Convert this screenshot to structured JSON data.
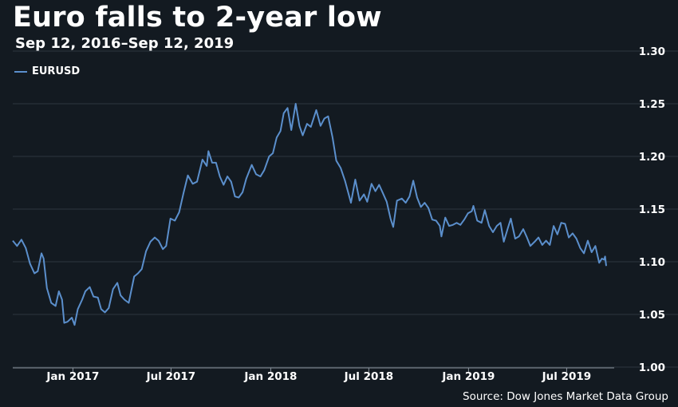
{
  "title": "Euro falls to 2-year low",
  "subtitle": "Sep 12, 2016–Sep 12, 2019",
  "source": "Source: Dow Jones Market Data Group",
  "colors": {
    "background": "#131a21",
    "line": "#5b8fcc",
    "grid": "#2c3540",
    "text": "#ffffff"
  },
  "chart_data": {
    "type": "line",
    "title": "Euro falls to 2-year low",
    "subtitle": "Sep 12, 2016–Sep 12, 2019",
    "xlabel": "",
    "ylabel": "",
    "ylim": [
      1.0,
      1.3
    ],
    "y_ticks": [
      "1.30",
      "1.25",
      "1.20",
      "1.15",
      "1.10",
      "1.05",
      "1.00"
    ],
    "x_ticks": [
      {
        "label": "Jan 2017",
        "date": "2017-01-01"
      },
      {
        "label": "Jul 2017",
        "date": "2017-07-01"
      },
      {
        "label": "Jan 2018",
        "date": "2018-01-01"
      },
      {
        "label": "Jul 2018",
        "date": "2018-07-01"
      },
      {
        "label": "Jan 2019",
        "date": "2019-01-01"
      },
      {
        "label": "Jul 2019",
        "date": "2019-07-01"
      }
    ],
    "x_range": [
      "2016-09-12",
      "2019-09-12"
    ],
    "grid": "horizontal",
    "y_axis_side": "right",
    "legend_position": "top-left",
    "series": [
      {
        "name": "EURUSD",
        "color": "#5b8fcc",
        "points": [
          [
            "2016-09-12",
            1.12
          ],
          [
            "2016-09-20",
            1.115
          ],
          [
            "2016-09-28",
            1.121
          ],
          [
            "2016-10-06",
            1.113
          ],
          [
            "2016-10-14",
            1.098
          ],
          [
            "2016-10-22",
            1.089
          ],
          [
            "2016-10-28",
            1.091
          ],
          [
            "2016-11-04",
            1.108
          ],
          [
            "2016-11-08",
            1.103
          ],
          [
            "2016-11-14",
            1.075
          ],
          [
            "2016-11-22",
            1.061
          ],
          [
            "2016-11-30",
            1.058
          ],
          [
            "2016-12-06",
            1.072
          ],
          [
            "2016-12-12",
            1.064
          ],
          [
            "2016-12-16",
            1.042
          ],
          [
            "2016-12-22",
            1.043
          ],
          [
            "2016-12-30",
            1.047
          ],
          [
            "2017-01-04",
            1.04
          ],
          [
            "2017-01-10",
            1.055
          ],
          [
            "2017-01-18",
            1.064
          ],
          [
            "2017-01-24",
            1.072
          ],
          [
            "2017-02-01",
            1.076
          ],
          [
            "2017-02-08",
            1.067
          ],
          [
            "2017-02-16",
            1.066
          ],
          [
            "2017-02-22",
            1.055
          ],
          [
            "2017-03-01",
            1.052
          ],
          [
            "2017-03-08",
            1.056
          ],
          [
            "2017-03-16",
            1.074
          ],
          [
            "2017-03-24",
            1.08
          ],
          [
            "2017-03-30",
            1.068
          ],
          [
            "2017-04-06",
            1.064
          ],
          [
            "2017-04-14",
            1.061
          ],
          [
            "2017-04-24",
            1.086
          ],
          [
            "2017-05-01",
            1.089
          ],
          [
            "2017-05-08",
            1.093
          ],
          [
            "2017-05-16",
            1.11
          ],
          [
            "2017-05-24",
            1.119
          ],
          [
            "2017-06-01",
            1.123
          ],
          [
            "2017-06-08",
            1.12
          ],
          [
            "2017-06-16",
            1.112
          ],
          [
            "2017-06-22",
            1.115
          ],
          [
            "2017-06-30",
            1.141
          ],
          [
            "2017-07-08",
            1.139
          ],
          [
            "2017-07-16",
            1.147
          ],
          [
            "2017-07-24",
            1.165
          ],
          [
            "2017-08-01",
            1.182
          ],
          [
            "2017-08-10",
            1.174
          ],
          [
            "2017-08-18",
            1.176
          ],
          [
            "2017-08-28",
            1.197
          ],
          [
            "2017-09-05",
            1.191
          ],
          [
            "2017-09-08",
            1.205
          ],
          [
            "2017-09-15",
            1.194
          ],
          [
            "2017-09-22",
            1.194
          ],
          [
            "2017-09-29",
            1.181
          ],
          [
            "2017-10-06",
            1.173
          ],
          [
            "2017-10-13",
            1.181
          ],
          [
            "2017-10-20",
            1.176
          ],
          [
            "2017-10-27",
            1.162
          ],
          [
            "2017-11-03",
            1.161
          ],
          [
            "2017-11-10",
            1.166
          ],
          [
            "2017-11-17",
            1.179
          ],
          [
            "2017-11-27",
            1.192
          ],
          [
            "2017-12-05",
            1.183
          ],
          [
            "2017-12-13",
            1.181
          ],
          [
            "2017-12-20",
            1.187
          ],
          [
            "2017-12-29",
            1.2
          ],
          [
            "2018-01-05",
            1.203
          ],
          [
            "2018-01-12",
            1.218
          ],
          [
            "2018-01-19",
            1.224
          ],
          [
            "2018-01-25",
            1.241
          ],
          [
            "2018-02-01",
            1.246
          ],
          [
            "2018-02-08",
            1.225
          ],
          [
            "2018-02-16",
            1.25
          ],
          [
            "2018-02-23",
            1.229
          ],
          [
            "2018-03-01",
            1.22
          ],
          [
            "2018-03-09",
            1.231
          ],
          [
            "2018-03-16",
            1.228
          ],
          [
            "2018-03-26",
            1.244
          ],
          [
            "2018-04-03",
            1.229
          ],
          [
            "2018-04-10",
            1.236
          ],
          [
            "2018-04-17",
            1.238
          ],
          [
            "2018-04-25",
            1.218
          ],
          [
            "2018-05-02",
            1.196
          ],
          [
            "2018-05-10",
            1.189
          ],
          [
            "2018-05-18",
            1.177
          ],
          [
            "2018-05-29",
            1.156
          ],
          [
            "2018-06-06",
            1.178
          ],
          [
            "2018-06-14",
            1.158
          ],
          [
            "2018-06-22",
            1.164
          ],
          [
            "2018-06-28",
            1.157
          ],
          [
            "2018-07-06",
            1.174
          ],
          [
            "2018-07-13",
            1.167
          ],
          [
            "2018-07-20",
            1.173
          ],
          [
            "2018-07-27",
            1.165
          ],
          [
            "2018-08-03",
            1.157
          ],
          [
            "2018-08-10",
            1.141
          ],
          [
            "2018-08-15",
            1.133
          ],
          [
            "2018-08-22",
            1.158
          ],
          [
            "2018-08-31",
            1.16
          ],
          [
            "2018-09-07",
            1.156
          ],
          [
            "2018-09-14",
            1.162
          ],
          [
            "2018-09-21",
            1.177
          ],
          [
            "2018-09-28",
            1.161
          ],
          [
            "2018-10-05",
            1.152
          ],
          [
            "2018-10-12",
            1.156
          ],
          [
            "2018-10-19",
            1.151
          ],
          [
            "2018-10-26",
            1.14
          ],
          [
            "2018-11-02",
            1.139
          ],
          [
            "2018-11-09",
            1.134
          ],
          [
            "2018-11-12",
            1.124
          ],
          [
            "2018-11-19",
            1.142
          ],
          [
            "2018-11-26",
            1.134
          ],
          [
            "2018-12-03",
            1.135
          ],
          [
            "2018-12-10",
            1.137
          ],
          [
            "2018-12-17",
            1.135
          ],
          [
            "2018-12-24",
            1.14
          ],
          [
            "2018-12-31",
            1.146
          ],
          [
            "2019-01-07",
            1.148
          ],
          [
            "2019-01-10",
            1.153
          ],
          [
            "2019-01-17",
            1.139
          ],
          [
            "2019-01-25",
            1.137
          ],
          [
            "2019-01-31",
            1.149
          ],
          [
            "2019-02-08",
            1.134
          ],
          [
            "2019-02-15",
            1.128
          ],
          [
            "2019-02-22",
            1.134
          ],
          [
            "2019-03-01",
            1.137
          ],
          [
            "2019-03-07",
            1.119
          ],
          [
            "2019-03-14",
            1.131
          ],
          [
            "2019-03-20",
            1.141
          ],
          [
            "2019-03-28",
            1.122
          ],
          [
            "2019-04-04",
            1.124
          ],
          [
            "2019-04-12",
            1.131
          ],
          [
            "2019-04-18",
            1.124
          ],
          [
            "2019-04-25",
            1.115
          ],
          [
            "2019-05-03",
            1.119
          ],
          [
            "2019-05-10",
            1.123
          ],
          [
            "2019-05-17",
            1.116
          ],
          [
            "2019-05-24",
            1.12
          ],
          [
            "2019-05-31",
            1.116
          ],
          [
            "2019-06-07",
            1.134
          ],
          [
            "2019-06-14",
            1.126
          ],
          [
            "2019-06-21",
            1.137
          ],
          [
            "2019-06-28",
            1.136
          ],
          [
            "2019-07-05",
            1.123
          ],
          [
            "2019-07-12",
            1.127
          ],
          [
            "2019-07-19",
            1.122
          ],
          [
            "2019-07-26",
            1.113
          ],
          [
            "2019-08-02",
            1.108
          ],
          [
            "2019-08-09",
            1.12
          ],
          [
            "2019-08-16",
            1.109
          ],
          [
            "2019-08-23",
            1.115
          ],
          [
            "2019-08-30",
            1.099
          ],
          [
            "2019-09-04",
            1.103
          ],
          [
            "2019-09-08",
            1.102
          ],
          [
            "2019-09-10",
            1.105
          ],
          [
            "2019-09-12",
            1.096
          ]
        ]
      }
    ]
  }
}
